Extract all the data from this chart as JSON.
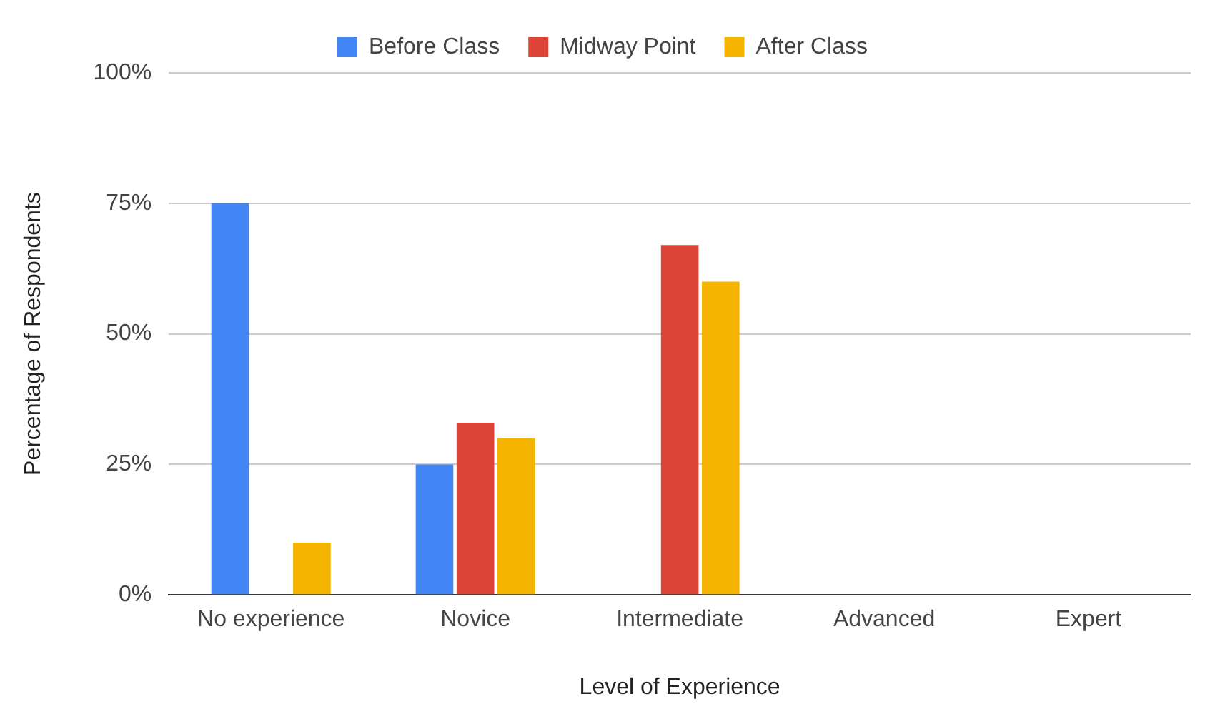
{
  "chart_data": {
    "type": "bar",
    "xlabel": "Level of Experience",
    "ylabel": "Percentage of Respondents",
    "categories": [
      "No experience",
      "Novice",
      "Intermediate",
      "Advanced",
      "Expert"
    ],
    "series": [
      {
        "name": "Before Class",
        "color": "#4285f4",
        "values": [
          75,
          25,
          0,
          0,
          0
        ]
      },
      {
        "name": "Midway Point",
        "color": "#db4437",
        "values": [
          0,
          33,
          67,
          0,
          0
        ]
      },
      {
        "name": "After Class",
        "color": "#f4b400",
        "values": [
          10,
          30,
          60,
          0,
          0
        ]
      }
    ],
    "ylim": [
      0,
      100
    ],
    "yticks": [
      {
        "value": 0,
        "label": "0%"
      },
      {
        "value": 25,
        "label": "25%"
      },
      {
        "value": 50,
        "label": "50%"
      },
      {
        "value": 75,
        "label": "75%"
      },
      {
        "value": 100,
        "label": "100%"
      }
    ],
    "grid": "y",
    "legend": "top"
  }
}
